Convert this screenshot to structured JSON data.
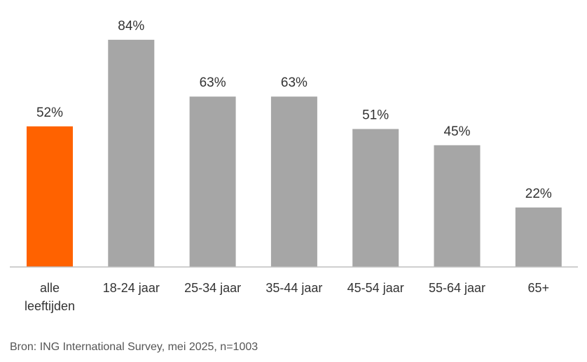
{
  "chart_data": {
    "type": "bar",
    "categories": [
      "alle leeftijden",
      "18-24 jaar",
      "25-34 jaar",
      "35-44 jaar",
      "45-54 jaar",
      "55-64 jaar",
      "65+"
    ],
    "values": [
      52,
      84,
      63,
      63,
      51,
      45,
      22
    ],
    "value_labels": [
      "52%",
      "84%",
      "63%",
      "63%",
      "51%",
      "45%",
      "22%"
    ],
    "highlight_index": 0,
    "colors": {
      "highlight": "#ff6200",
      "default": "#a6a6a6",
      "axis": "#bfbfbf"
    },
    "ylim": [
      0,
      100
    ],
    "grid": false,
    "legend": "none"
  },
  "source": "Bron: ING International Survey, mei 2025, n=1003"
}
